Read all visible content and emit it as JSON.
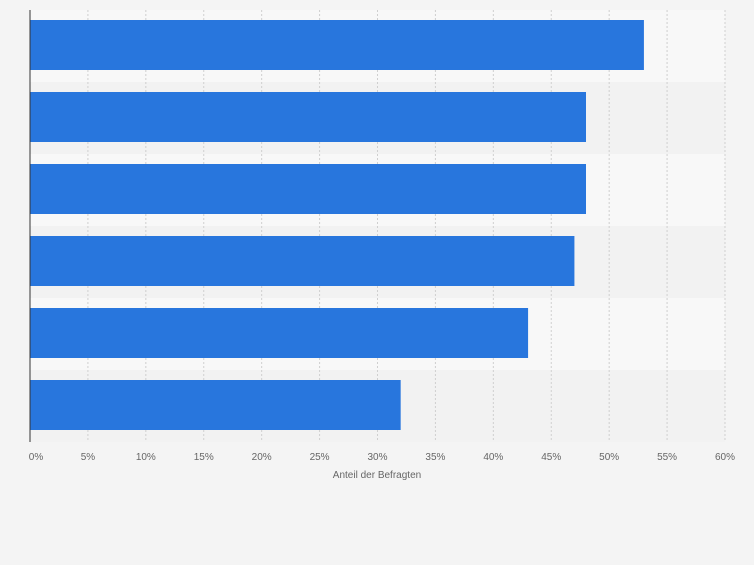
{
  "chart_data": {
    "type": "bar",
    "orientation": "horizontal",
    "categories": [
      "",
      "",
      "",
      "",
      "",
      ""
    ],
    "values": [
      53,
      48,
      48,
      47,
      43,
      32
    ],
    "xlabel": "Anteil der Befragten",
    "ylabel": "",
    "xlim": [
      0,
      60
    ],
    "x_ticks": [
      0,
      5,
      10,
      15,
      20,
      25,
      30,
      35,
      40,
      45,
      50,
      55,
      60
    ],
    "x_tick_labels": [
      "0%",
      "5%",
      "10%",
      "15%",
      "20%",
      "25%",
      "30%",
      "35%",
      "40%",
      "45%",
      "50%",
      "55%",
      "60%"
    ],
    "grid": true,
    "legend": "none",
    "colors": {
      "bar": "#2876dd",
      "band_light": "#f8f8f8",
      "band_dark": "#f2f2f2",
      "grid": "#cfcfcf",
      "axis": "#333333"
    }
  }
}
